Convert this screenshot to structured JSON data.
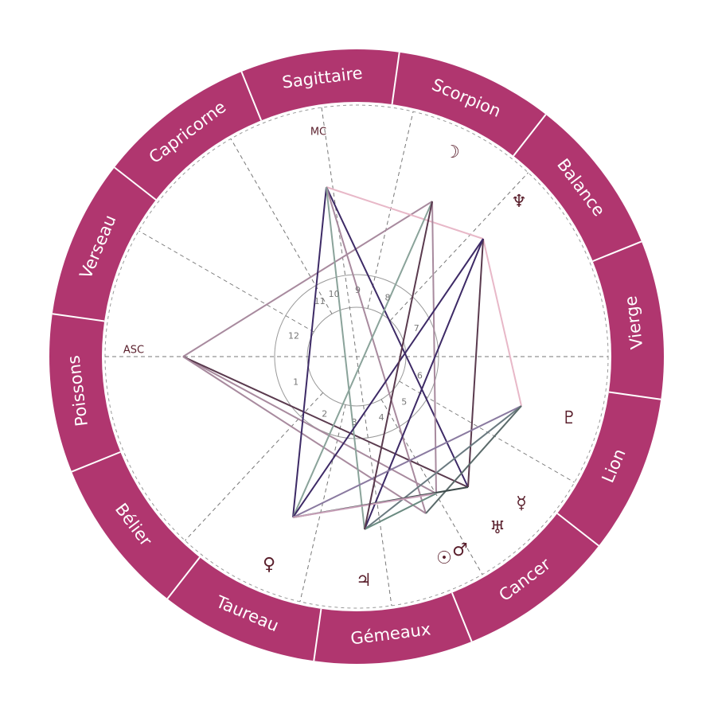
{
  "signs": [
    "Bélier",
    "Taureau",
    "Gémeaux",
    "Cancer",
    "Lion",
    "Vierge",
    "Balance",
    "Scorpion",
    "Sagittaire",
    "Capricorne",
    "Verseau",
    "Poissons"
  ],
  "axes": {
    "asc": "ASC",
    "mc": "MC"
  },
  "houses": [
    "1",
    "2",
    "3",
    "4",
    "5",
    "6",
    "7",
    "8",
    "9",
    "10",
    "11",
    "12"
  ],
  "planets": [
    "☽",
    "♆",
    "♇",
    "☿",
    "♅",
    "☉",
    "♂",
    "♀",
    "♃"
  ]
}
